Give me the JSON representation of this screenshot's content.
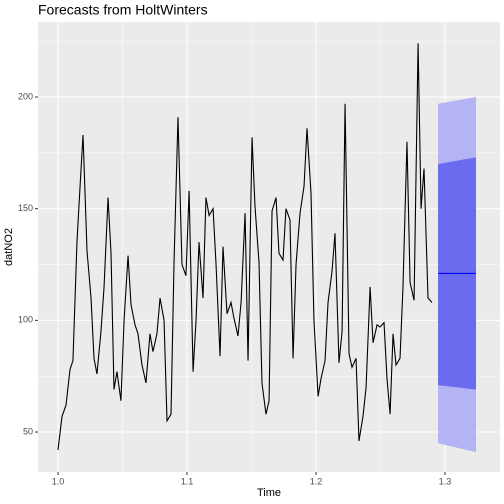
{
  "chart_data": {
    "type": "forecast",
    "title": "Forecasts from HoltWinters",
    "x_label": "Time",
    "y_label": "datNO2",
    "xlim": [
      0.9845,
      1.3426
    ],
    "ylim": [
      32.1,
      233.6
    ],
    "xticks": [
      {
        "value": 1.0,
        "label": "1.0"
      },
      1.1,
      1.2,
      1.3
    ],
    "yticks": [
      50,
      100,
      150,
      200
    ],
    "grid": true,
    "series": [
      {
        "name": "datNO2",
        "color": "#000000",
        "x": [
          1.0,
          1.0031,
          1.0062,
          1.0093,
          1.0116,
          1.0147,
          1.0171,
          1.0194,
          1.0225,
          1.0256,
          1.0279,
          1.0302,
          1.0333,
          1.0357,
          1.0388,
          1.0411,
          1.0434,
          1.0457,
          1.0488,
          1.0512,
          1.0543,
          1.0566,
          1.0597,
          1.062,
          1.0651,
          1.0682,
          1.0713,
          1.0736,
          1.0767,
          1.0791,
          1.0822,
          1.0845,
          1.0876,
          1.0899,
          1.093,
          1.0961,
          1.0992,
          1.1016,
          1.1047,
          1.107,
          1.1093,
          1.1124,
          1.1147,
          1.1171,
          1.1202,
          1.1225,
          1.1256,
          1.1279,
          1.131,
          1.1341,
          1.1364,
          1.1395,
          1.1419,
          1.145,
          1.1473,
          1.1504,
          1.1527,
          1.1558,
          1.1581,
          1.1612,
          1.1636,
          1.1659,
          1.169,
          1.1713,
          1.1744,
          1.1767,
          1.1798,
          1.1822,
          1.1845,
          1.1876,
          1.1907,
          1.193,
          1.1961,
          1.1984,
          1.2016,
          1.2039,
          1.207,
          1.2093,
          1.2124,
          1.2147,
          1.2178,
          1.2202,
          1.2225,
          1.2256,
          1.2279,
          1.231,
          1.2333,
          1.2364,
          1.2388,
          1.2419,
          1.2442,
          1.2473,
          1.2496,
          1.2527,
          1.255,
          1.2574,
          1.2597,
          1.262,
          1.2651,
          1.2674,
          1.2705,
          1.2729,
          1.276,
          1.2791,
          1.2814,
          1.2837,
          1.2868,
          1.2899
        ],
        "values": [
          42,
          57,
          62,
          78,
          82,
          135,
          160,
          183,
          131,
          110,
          83,
          76,
          95,
          115,
          155,
          130,
          69,
          77,
          64,
          100,
          129,
          107,
          98,
          94,
          80,
          72,
          94,
          86,
          94,
          110,
          100,
          55,
          58,
          125,
          191,
          125,
          120,
          158,
          77,
          100,
          135,
          110,
          155,
          147,
          150,
          125,
          84,
          133,
          103,
          108,
          101,
          93,
          108,
          148,
          82,
          182,
          151,
          126,
          72,
          58,
          64,
          149,
          155,
          130,
          127,
          150,
          145,
          83,
          125,
          148,
          160,
          186,
          157,
          100,
          66,
          74,
          82,
          108,
          122,
          139,
          81,
          95,
          197,
          85,
          79,
          83,
          46,
          57,
          70,
          115,
          90,
          98,
          97,
          99,
          74,
          58,
          94,
          80,
          83,
          115,
          180,
          117,
          109,
          224,
          150,
          168,
          110,
          108
        ]
      }
    ],
    "forecast": {
      "x": [
        1.2946,
        1.324
      ],
      "mean": [
        121,
        121
      ],
      "lo80": [
        71,
        69
      ],
      "hi80": [
        170,
        173
      ],
      "lo95": [
        45,
        41
      ],
      "hi95": [
        197,
        200
      ],
      "mean_color": "#0000ff",
      "color80": "#6b6bef",
      "color95": "#b4b4f5"
    }
  }
}
